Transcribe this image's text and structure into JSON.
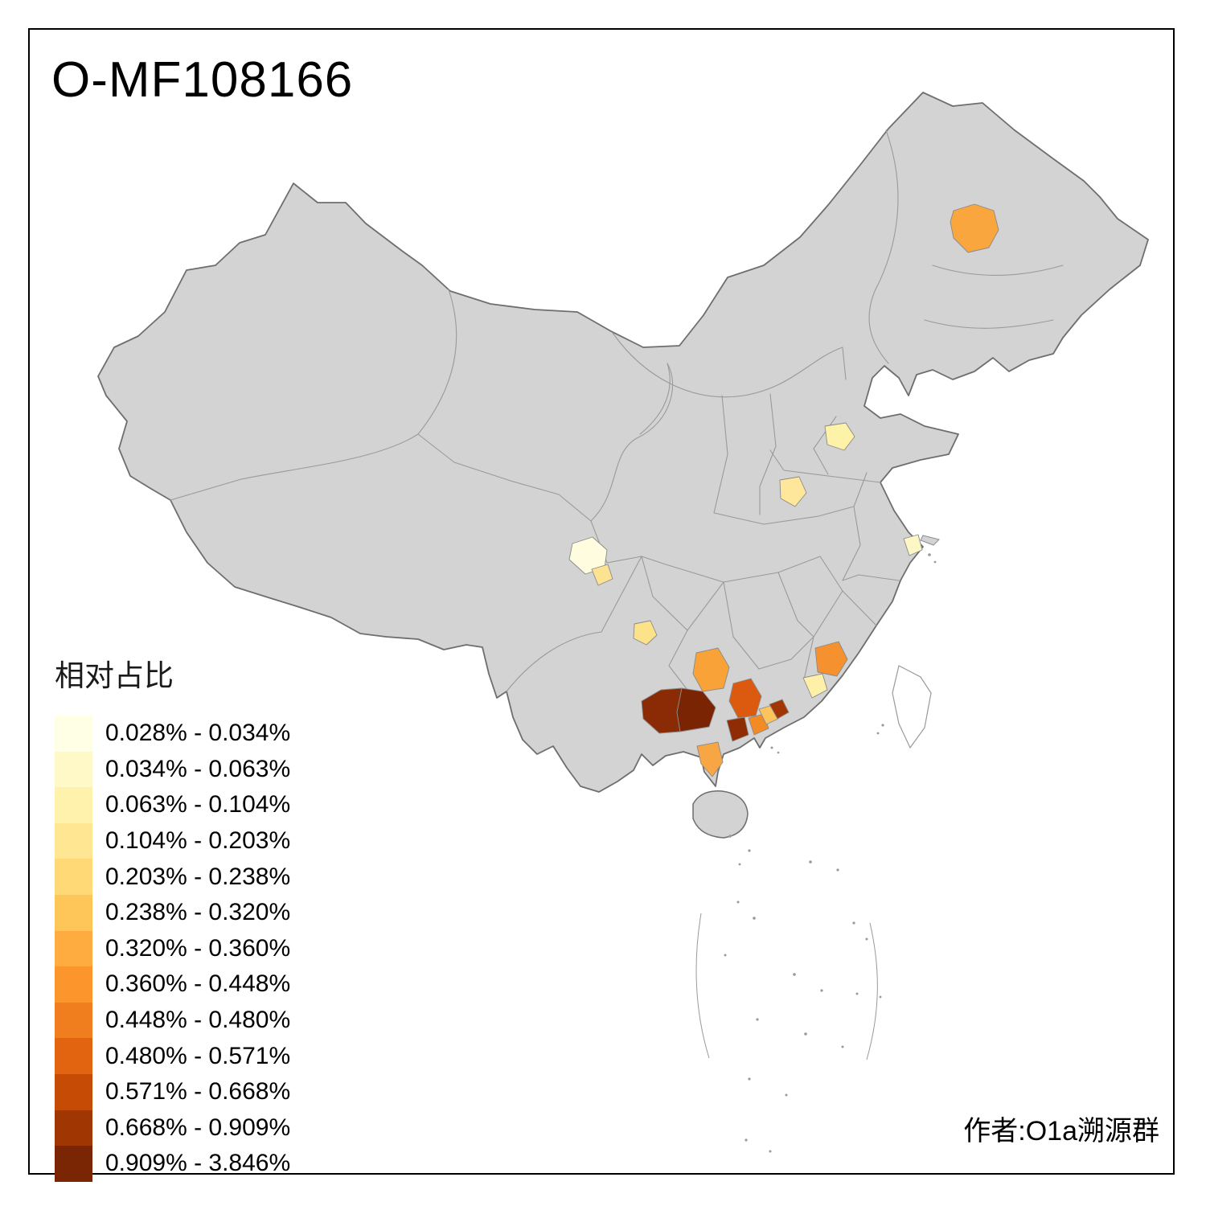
{
  "title": "O-MF108166",
  "credit": "作者:O1a溯源群",
  "legend": {
    "title": "相对占比",
    "items": [
      {
        "range": "0.028% - 0.034%",
        "color": "#FFFFE5"
      },
      {
        "range": "0.034% - 0.063%",
        "color": "#FFF9C8"
      },
      {
        "range": "0.063% - 0.104%",
        "color": "#FEF2AD"
      },
      {
        "range": "0.104% - 0.203%",
        "color": "#FEE692"
      },
      {
        "range": "0.203% - 0.238%",
        "color": "#FED976"
      },
      {
        "range": "0.238% - 0.320%",
        "color": "#FEC559"
      },
      {
        "range": "0.320% - 0.360%",
        "color": "#FEAC3F"
      },
      {
        "range": "0.360% - 0.448%",
        "color": "#FB952C"
      },
      {
        "range": "0.448% - 0.480%",
        "color": "#F07E1E"
      },
      {
        "range": "0.480% - 0.571%",
        "color": "#E26410"
      },
      {
        "range": "0.571% - 0.668%",
        "color": "#C64C05"
      },
      {
        "range": "0.668% - 0.909%",
        "color": "#A03703"
      },
      {
        "range": "0.909% - 3.846%",
        "color": "#7A2604"
      }
    ]
  },
  "map": {
    "base_fill": "#D3D3D3",
    "national_border_color": "#6E6E6E",
    "province_border_color": "#9A9A9A",
    "background": "#FFFFFF",
    "regions": [
      {
        "id": "northeast-prefecture",
        "color": "#FAA63F"
      },
      {
        "id": "shandong-west-prefecture",
        "color": "#FEF2A9"
      },
      {
        "id": "henan-east-prefecture",
        "color": "#FEE69B"
      },
      {
        "id": "sichuan-chengdu-prefecture",
        "color": "#FFFCE0"
      },
      {
        "id": "sichuan-south-prefecture",
        "color": "#FDE292"
      },
      {
        "id": "guizhou-prefecture",
        "color": "#FCE289"
      },
      {
        "id": "guangxi-west-prefecture-a",
        "color": "#8A2B05"
      },
      {
        "id": "guangxi-west-prefecture-b",
        "color": "#7A2404"
      },
      {
        "id": "guangxi-north-prefecture",
        "color": "#F9A238"
      },
      {
        "id": "guangxi-central-prefecture",
        "color": "#DB5A10"
      },
      {
        "id": "guangxi-south-prefecture",
        "color": "#8F2B05"
      },
      {
        "id": "guangxi-southeast-prefecture",
        "color": "#F28A26"
      },
      {
        "id": "guangxi-east-prefecture",
        "color": "#FDC35C"
      },
      {
        "id": "guangdong-west-prefecture",
        "color": "#A23503"
      },
      {
        "id": "leizhou-prefecture",
        "color": "#F8A643"
      },
      {
        "id": "fujian-south-prefecture",
        "color": "#F5912E"
      },
      {
        "id": "fujian-coast-prefecture",
        "color": "#FEEFA9"
      },
      {
        "id": "shanghai-area",
        "color": "#FDF7C6"
      }
    ]
  },
  "chart_data": {
    "type": "heatmap",
    "title": "O-MF108166",
    "legend_title": "相对占比",
    "breaks_percent": [
      0.028,
      0.034,
      0.063,
      0.104,
      0.203,
      0.238,
      0.32,
      0.36,
      0.448,
      0.48,
      0.571,
      0.668,
      0.909,
      3.846
    ],
    "palette": [
      "#FFFFE5",
      "#FFF9C8",
      "#FEF2AD",
      "#FEE692",
      "#FED976",
      "#FEC559",
      "#FEAC3F",
      "#FB952C",
      "#F07E1E",
      "#E26410",
      "#C64C05",
      "#A03703",
      "#7A2604"
    ]
  }
}
